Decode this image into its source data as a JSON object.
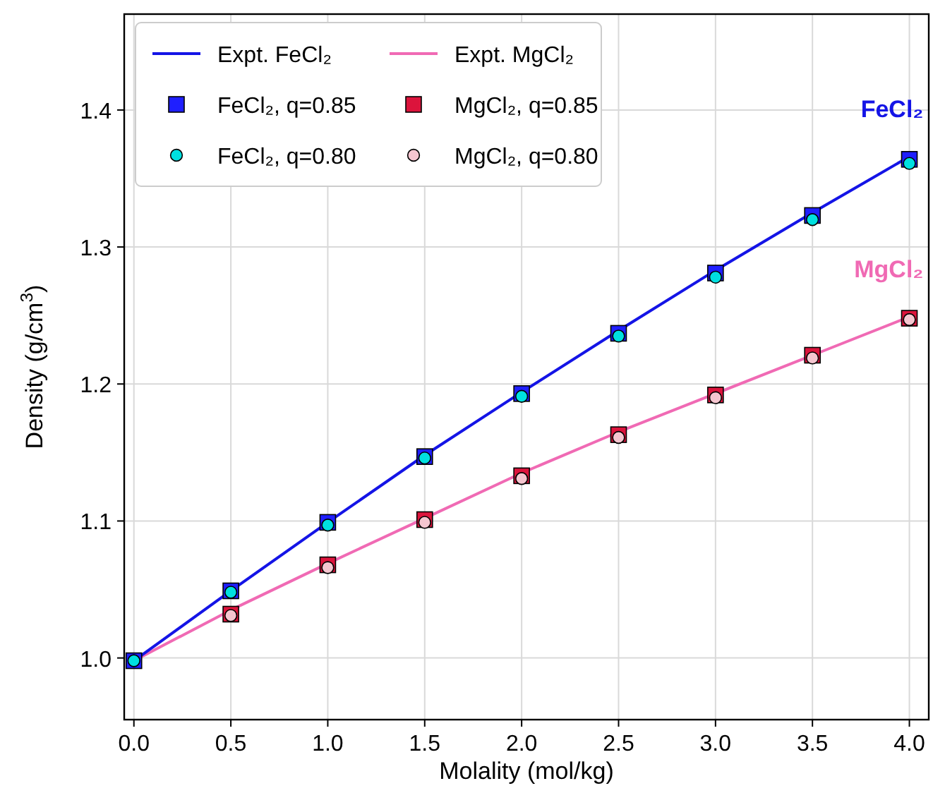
{
  "chart_data": {
    "type": "line",
    "xlabel": "Molality (mol/kg)",
    "ylabel": "Density (g/cm$^{3}$)",
    "x": [
      0,
      0.5,
      1,
      1.5,
      2,
      2.5,
      3,
      3.5,
      4
    ],
    "xlim": [
      -0.05,
      4.1
    ],
    "ylim": [
      0.955,
      1.47
    ],
    "xticks": [
      {
        "value": 0,
        "label": "0.0"
      },
      0.5,
      {
        "value": 1,
        "label": "1.0"
      },
      1.5,
      {
        "value": 2,
        "label": "2.0"
      },
      2.5,
      {
        "value": 3,
        "label": "3.0"
      },
      3.5,
      {
        "value": 4,
        "label": "4.0"
      }
    ],
    "yticks": [
      {
        "value": 1,
        "label": "1.0"
      },
      1.1,
      1.2,
      1.3,
      1.4
    ],
    "grid": true,
    "legend": "top left",
    "series": [
      {
        "name": "Expt. FeCl₂",
        "marker": "none",
        "color": "#1414e6",
        "values": [
          0.998,
          1.049,
          1.099,
          1.148,
          1.194,
          1.239,
          1.283,
          1.325,
          1.366
        ]
      },
      {
        "name": "FeCl₂, q=0.85",
        "type": "scatter",
        "marker": "square",
        "color": "#1f1fff",
        "values": [
          0.998,
          1.049,
          1.099,
          1.147,
          1.193,
          1.237,
          1.281,
          1.323,
          1.364
        ]
      },
      {
        "name": "FeCl₂, q=0.80",
        "type": "scatter",
        "marker": "circle",
        "color": "#00e0e0",
        "values": [
          0.998,
          1.048,
          1.097,
          1.146,
          1.191,
          1.235,
          1.278,
          1.32,
          1.361
        ]
      },
      {
        "name": "Expt. MgCl₂",
        "marker": "none",
        "color": "#f06ab4",
        "values": [
          0.998,
          1.035,
          1.069,
          1.102,
          1.135,
          1.165,
          1.193,
          1.221,
          1.249
        ]
      },
      {
        "name": "MgCl₂, q=0.85",
        "type": "scatter",
        "marker": "square",
        "color": "#dc143c",
        "values": [
          null,
          1.032,
          1.068,
          1.101,
          1.133,
          1.163,
          1.192,
          1.221,
          1.248
        ]
      },
      {
        "name": "MgCl₂, q=0.80",
        "type": "scatter",
        "marker": "circle",
        "color": "#f5c6d0",
        "values": [
          null,
          1.031,
          1.066,
          1.099,
          1.131,
          1.161,
          1.19,
          1.219,
          1.247
        ]
      }
    ],
    "annotations": [
      {
        "text": "FeCl₂",
        "x": 4.0,
        "y": 1.366
      },
      {
        "text": "MgCl₂",
        "x": 4.0,
        "y": 1.249
      }
    ]
  }
}
